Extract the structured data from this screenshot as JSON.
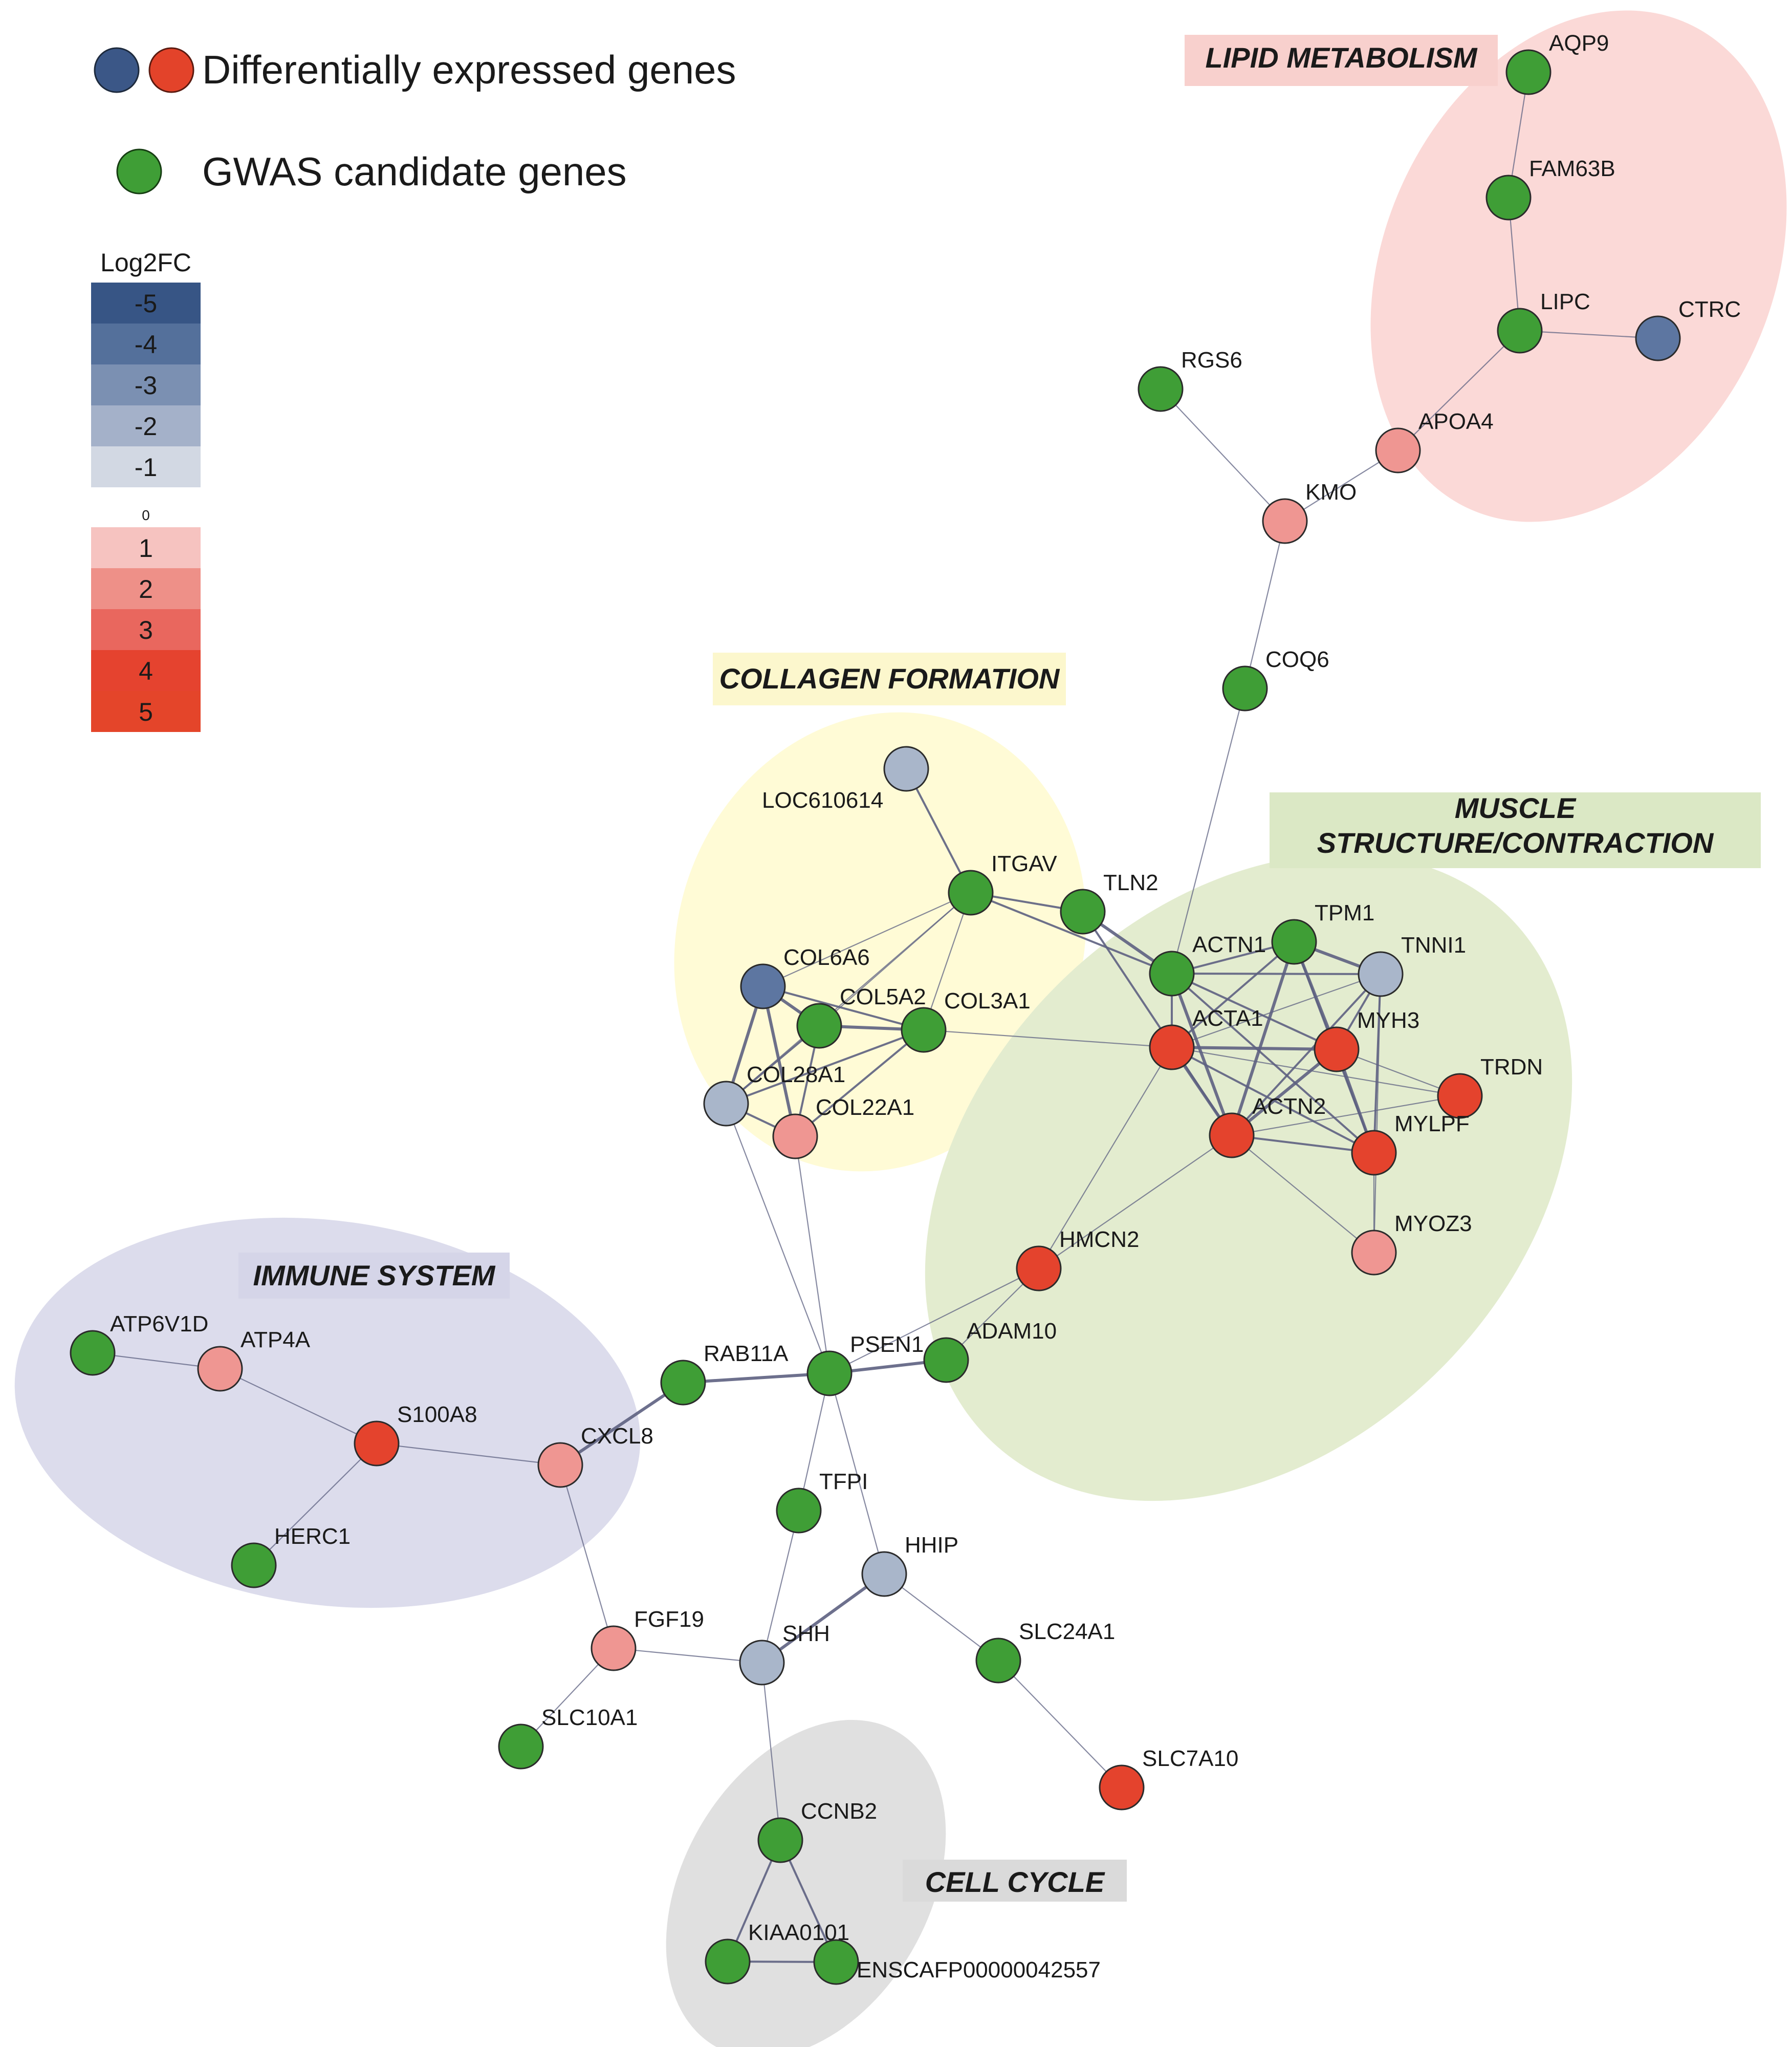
{
  "legend": {
    "deg_label": "Differentially expressed genes",
    "gwas_label": "GWAS candidate genes",
    "deg_colors": [
      "#3b5787",
      "#e3432a"
    ],
    "gwas_color": "#3f9e36"
  },
  "color_scale": {
    "title": "Log2FC",
    "negative": [
      {
        "label": "-5",
        "color": "#375585"
      },
      {
        "label": "-4",
        "color": "#54709b"
      },
      {
        "label": "-3",
        "color": "#7b90b2"
      },
      {
        "label": "-2",
        "color": "#a4b1c9"
      },
      {
        "label": "-1",
        "color": "#d2d8e3"
      }
    ],
    "zero_label": "0",
    "positive": [
      {
        "label": "1",
        "color": "#f6c3c0"
      },
      {
        "label": "2",
        "color": "#ee9088"
      },
      {
        "label": "3",
        "color": "#e9675e"
      },
      {
        "label": "4",
        "color": "#e5432f"
      },
      {
        "label": "5",
        "color": "#e4452a"
      }
    ]
  },
  "groups": [
    {
      "id": "lipid",
      "label": "LIPID METABOLISM",
      "fill": "#fbd9d7",
      "label_bg": "#f8d0cd"
    },
    {
      "id": "collagen",
      "label": "COLLAGEN FORMATION",
      "fill": "#fffbd6",
      "label_bg": "#fcf7cd"
    },
    {
      "id": "muscle",
      "label": "MUSCLE STRUCTURE/CONTRACTION",
      "label_line1": "MUSCLE",
      "label_line2": "STRUCTURE/CONTRACTION",
      "fill": "#e3eccf",
      "label_bg": "#dbe8c5"
    },
    {
      "id": "immune",
      "label": "IMMUNE SYSTEM",
      "fill": "#dcdcec",
      "label_bg": "#d5d5e8"
    },
    {
      "id": "cellcycle",
      "label": "CELL CYCLE",
      "fill": "#e0e0e0",
      "label_bg": "#dadada"
    }
  ],
  "node_types": {
    "gwas": "#3f9e36",
    "up_strong": "#e4432d",
    "up_light": "#ef9692",
    "down_light": "#a9b6ca",
    "down_mid": "#5d76a1"
  },
  "nodes": [
    {
      "id": "AQP9",
      "label": "AQP9",
      "type": "gwas"
    },
    {
      "id": "FAM63B",
      "label": "FAM63B",
      "type": "gwas"
    },
    {
      "id": "LIPC",
      "label": "LIPC",
      "type": "gwas"
    },
    {
      "id": "CTRC",
      "label": "CTRC",
      "type": "down_mid"
    },
    {
      "id": "RGS6",
      "label": "RGS6",
      "type": "gwas"
    },
    {
      "id": "APOA4",
      "label": "APOA4",
      "type": "up_light"
    },
    {
      "id": "KMO",
      "label": "KMO",
      "type": "up_light"
    },
    {
      "id": "COQ6",
      "label": "COQ6",
      "type": "gwas"
    },
    {
      "id": "LOC610614",
      "label": "LOC610614",
      "type": "down_light"
    },
    {
      "id": "ITGAV",
      "label": "ITGAV",
      "type": "gwas"
    },
    {
      "id": "TLN2",
      "label": "TLN2",
      "type": "gwas"
    },
    {
      "id": "COL6A6",
      "label": "COL6A6",
      "type": "down_mid"
    },
    {
      "id": "COL5A2",
      "label": "COL5A2",
      "type": "gwas"
    },
    {
      "id": "COL3A1",
      "label": "COL3A1",
      "type": "gwas"
    },
    {
      "id": "COL28A1",
      "label": "COL28A1",
      "type": "down_light"
    },
    {
      "id": "COL22A1",
      "label": "COL22A1",
      "type": "up_light"
    },
    {
      "id": "ACTN1",
      "label": "ACTN1",
      "type": "gwas"
    },
    {
      "id": "TPM1",
      "label": "TPM1",
      "type": "gwas"
    },
    {
      "id": "TNNI1",
      "label": "TNNI1",
      "type": "down_light"
    },
    {
      "id": "ACTA1",
      "label": "ACTA1",
      "type": "up_strong"
    },
    {
      "id": "MYH3",
      "label": "MYH3",
      "type": "up_strong"
    },
    {
      "id": "TRDN",
      "label": "TRDN",
      "type": "up_strong"
    },
    {
      "id": "ACTN2",
      "label": "ACTN2",
      "type": "up_strong"
    },
    {
      "id": "MYLPF",
      "label": "MYLPF",
      "type": "up_strong"
    },
    {
      "id": "MYOZ3",
      "label": "MYOZ3",
      "type": "up_light"
    },
    {
      "id": "HMCN2",
      "label": "HMCN2",
      "type": "up_strong"
    },
    {
      "id": "ADAM10",
      "label": "ADAM10",
      "type": "gwas"
    },
    {
      "id": "PSEN1",
      "label": "PSEN1",
      "type": "gwas"
    },
    {
      "id": "RAB11A",
      "label": "RAB11A",
      "type": "gwas"
    },
    {
      "id": "ATP6V1D",
      "label": "ATP6V1D",
      "type": "gwas"
    },
    {
      "id": "ATP4A",
      "label": "ATP4A",
      "type": "up_light"
    },
    {
      "id": "S100A8",
      "label": "S100A8",
      "type": "up_strong"
    },
    {
      "id": "CXCL8",
      "label": "CXCL8",
      "type": "up_light"
    },
    {
      "id": "HERC1",
      "label": "HERC1",
      "type": "gwas"
    },
    {
      "id": "TFPI",
      "label": "TFPI",
      "type": "gwas"
    },
    {
      "id": "HHIP",
      "label": "HHIP",
      "type": "down_light"
    },
    {
      "id": "SHH",
      "label": "SHH",
      "type": "down_light"
    },
    {
      "id": "FGF19",
      "label": "FGF19",
      "type": "up_light"
    },
    {
      "id": "SLC24A1",
      "label": "SLC24A1",
      "type": "gwas"
    },
    {
      "id": "SLC10A1",
      "label": "SLC10A1",
      "type": "gwas"
    },
    {
      "id": "SLC7A10",
      "label": "SLC7A10",
      "type": "up_strong"
    },
    {
      "id": "CCNB2",
      "label": "CCNB2",
      "type": "gwas"
    },
    {
      "id": "KIAA0101",
      "label": "KIAA0101",
      "type": "gwas"
    },
    {
      "id": "ENSCAFP00000042557",
      "label": "ENSCAFP00000042557",
      "type": "gwas"
    }
  ],
  "edges": [
    [
      "AQP9",
      "FAM63B",
      1
    ],
    [
      "FAM63B",
      "LIPC",
      1
    ],
    [
      "LIPC",
      "CTRC",
      1
    ],
    [
      "LIPC",
      "APOA4",
      1
    ],
    [
      "APOA4",
      "KMO",
      1
    ],
    [
      "RGS6",
      "KMO",
      1
    ],
    [
      "KMO",
      "COQ6",
      1
    ],
    [
      "COQ6",
      "ACTN1",
      1
    ],
    [
      "LOC610614",
      "ITGAV",
      2
    ],
    [
      "ITGAV",
      "TLN2",
      2
    ],
    [
      "ITGAV",
      "ACTN1",
      2
    ],
    [
      "ITGAV",
      "COL6A6",
      1
    ],
    [
      "ITGAV",
      "COL5A2",
      1
    ],
    [
      "ITGAV",
      "COL3A1",
      1
    ],
    [
      "ITGAV",
      "COL28A1",
      1
    ],
    [
      "TLN2",
      "ACTN1",
      3
    ],
    [
      "TLN2",
      "ACTN2",
      2
    ],
    [
      "COL6A6",
      "COL5A2",
      3
    ],
    [
      "COL6A6",
      "COL3A1",
      2
    ],
    [
      "COL6A6",
      "COL28A1",
      3
    ],
    [
      "COL6A6",
      "COL22A1",
      3
    ],
    [
      "COL5A2",
      "COL3A1",
      3
    ],
    [
      "COL5A2",
      "COL28A1",
      2
    ],
    [
      "COL5A2",
      "COL22A1",
      2
    ],
    [
      "COL3A1",
      "COL28A1",
      2
    ],
    [
      "COL3A1",
      "COL22A1",
      2
    ],
    [
      "COL3A1",
      "ACTA1",
      1
    ],
    [
      "COL28A1",
      "COL22A1",
      2
    ],
    [
      "COL28A1",
      "PSEN1",
      1
    ],
    [
      "COL22A1",
      "PSEN1",
      1
    ],
    [
      "ACTN1",
      "TPM1",
      2
    ],
    [
      "ACTN1",
      "TNNI1",
      2
    ],
    [
      "ACTN1",
      "ACTA1",
      2
    ],
    [
      "ACTN1",
      "MYH3",
      2
    ],
    [
      "ACTN1",
      "ACTN2",
      3
    ],
    [
      "ACTN1",
      "MYLPF",
      2
    ],
    [
      "TPM1",
      "TNNI1",
      3
    ],
    [
      "TPM1",
      "ACTA1",
      2
    ],
    [
      "TPM1",
      "MYH3",
      3
    ],
    [
      "TPM1",
      "ACTN2",
      3
    ],
    [
      "TPM1",
      "MYLPF",
      2
    ],
    [
      "TNNI1",
      "MYH3",
      2
    ],
    [
      "TNNI1",
      "ACTN2",
      2
    ],
    [
      "TNNI1",
      "MYLPF",
      2
    ],
    [
      "TNNI1",
      "ACTA1",
      1
    ],
    [
      "ACTA1",
      "MYH3",
      3
    ],
    [
      "ACTA1",
      "ACTN2",
      3
    ],
    [
      "ACTA1",
      "MYLPF",
      2
    ],
    [
      "ACTA1",
      "TRDN",
      1
    ],
    [
      "ACTA1",
      "HMCN2",
      1
    ],
    [
      "MYH3",
      "ACTN2",
      3
    ],
    [
      "MYH3",
      "MYLPF",
      3
    ],
    [
      "MYH3",
      "TRDN",
      1
    ],
    [
      "ACTN2",
      "MYLPF",
      2
    ],
    [
      "ACTN2",
      "TRDN",
      1
    ],
    [
      "ACTN2",
      "MYOZ3",
      1
    ],
    [
      "ACTN2",
      "HMCN2",
      1
    ],
    [
      "MYLPF",
      "MYOZ3",
      1
    ],
    [
      "TNNI1",
      "MYOZ3",
      1
    ],
    [
      "HMCN2",
      "ADAM10",
      1
    ],
    [
      "HMCN2",
      "PSEN1",
      1
    ],
    [
      "PSEN1",
      "ADAM10",
      3
    ],
    [
      "PSEN1",
      "RAB11A",
      3
    ],
    [
      "PSEN1",
      "TFPI",
      1
    ],
    [
      "PSEN1",
      "HHIP",
      1
    ],
    [
      "RAB11A",
      "CXCL8",
      3
    ],
    [
      "ATP6V1D",
      "ATP4A",
      1
    ],
    [
      "ATP4A",
      "S100A8",
      1
    ],
    [
      "S100A8",
      "CXCL8",
      1
    ],
    [
      "S100A8",
      "HERC1",
      1
    ],
    [
      "CXCL8",
      "FGF19",
      1
    ],
    [
      "TFPI",
      "SHH",
      1
    ],
    [
      "HHIP",
      "SHH",
      3
    ],
    [
      "HHIP",
      "SLC24A1",
      1
    ],
    [
      "FGF19",
      "SHH",
      1
    ],
    [
      "FGF19",
      "SLC10A1",
      1
    ],
    [
      "SLC24A1",
      "SLC7A10",
      1
    ],
    [
      "SHH",
      "CCNB2",
      1
    ],
    [
      "CCNB2",
      "KIAA0101",
      2
    ],
    [
      "CCNB2",
      "ENSCAFP00000042557",
      2
    ],
    [
      "KIAA0101",
      "ENSCAFP00000042557",
      2
    ]
  ]
}
